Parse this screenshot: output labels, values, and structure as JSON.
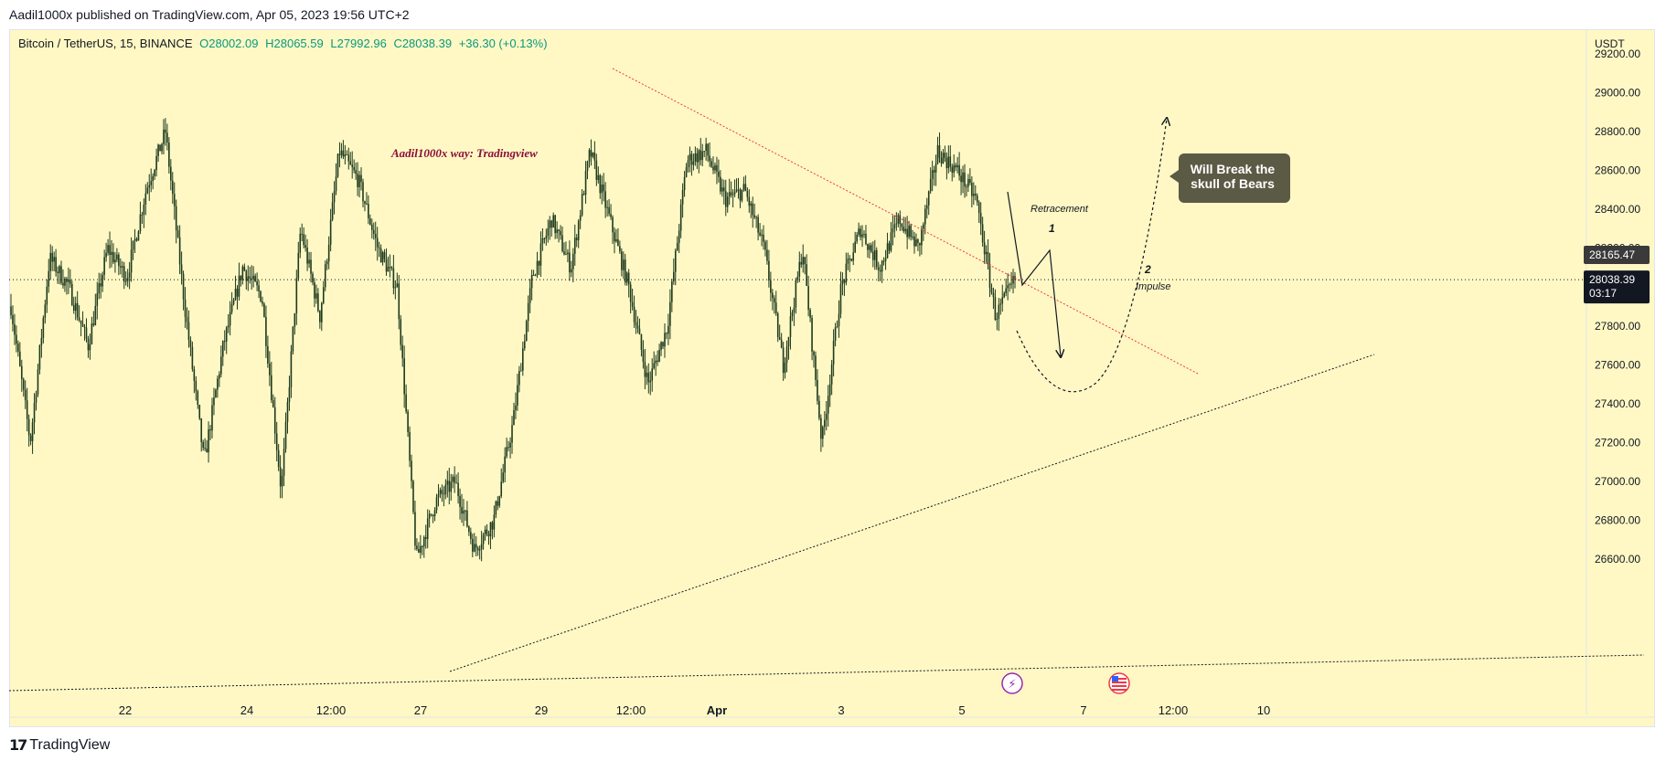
{
  "header": {
    "published_text": "Aadil1000x published on TradingView.com, Apr 05, 2023 19:56 UTC+2"
  },
  "legend": {
    "symbol": "Bitcoin / TetherUS, 15, BINANCE",
    "open": "O28002.09",
    "high": "H28065.59",
    "low": "L27992.96",
    "close": "C28038.39",
    "change": "+36.30 (+0.13%)"
  },
  "footer": {
    "brand": "TradingView"
  },
  "colors": {
    "background": "#fff8c4",
    "candle": "#1e3a1e",
    "price_label_bg": "#131722",
    "trendline_red": "#f23645",
    "callout_bg": "#5b5a45"
  },
  "chart_data": {
    "type": "candlestick",
    "symbol": "Bitcoin / TetherUS",
    "interval": "15",
    "exchange": "BINANCE",
    "currency": "USDT",
    "x_tick_labels": [
      "22",
      "24",
      "12:00",
      "27",
      "29",
      "12:00",
      "Apr",
      "3",
      "5",
      "7",
      "12:00",
      "10"
    ],
    "y_tick_labels": [
      "29200.00",
      "29000.00",
      "28800.00",
      "28600.00",
      "28400.00",
      "28200.00",
      "28000.00",
      "27800.00",
      "27600.00",
      "27400.00",
      "27200.00",
      "27000.00",
      "26800.00",
      "26600.00"
    ],
    "ylim": [
      26400,
      29400
    ],
    "last_price": "28038.39",
    "countdown": "03:17",
    "marked_price": "28165.47",
    "approx_price_path": [
      27900,
      27200,
      28150,
      28000,
      27700,
      28200,
      28050,
      28500,
      28800,
      27900,
      27100,
      27700,
      28100,
      27950,
      26950,
      28300,
      27850,
      28700,
      28550,
      28200,
      28000,
      26600,
      26900,
      27000,
      26650,
      26800,
      27300,
      28050,
      28350,
      28100,
      28700,
      28350,
      28000,
      27500,
      27800,
      28650,
      28700,
      28450,
      28500,
      28200,
      27600,
      28200,
      27200,
      28000,
      28300,
      28100,
      28350,
      28200,
      28700,
      28600,
      28450,
      27850,
      28038
    ],
    "annotations": {
      "watermark": "Aadil1000x way: Tradingview",
      "retracement_label": "Retracement",
      "wave1_label": "1",
      "wave2_label": "2",
      "impulse_label": "Impulse",
      "callout_text": [
        "Will Break the",
        "skull of Bears"
      ]
    }
  }
}
